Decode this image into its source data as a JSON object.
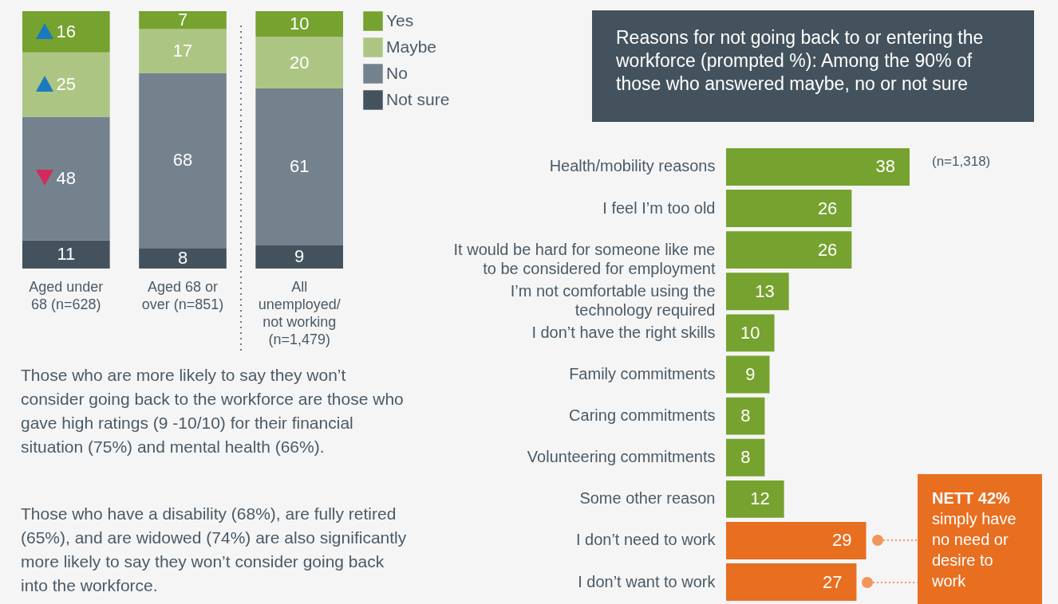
{
  "chart_data": [
    {
      "type": "bar",
      "stacked": true,
      "data_labels": true,
      "legend": "top right",
      "categories": [
        "Aged under 68 (n=628)",
        "Aged 68 or over (n=851)",
        "All unemployed/ not working (n=1,479)"
      ],
      "series": [
        {
          "name": "Not sure",
          "color": "#43525d",
          "values": [
            11,
            8,
            9
          ]
        },
        {
          "name": "No",
          "color": "#74828d",
          "values": [
            48,
            68,
            61
          ]
        },
        {
          "name": "Maybe",
          "color": "#adc583",
          "values": [
            25,
            17,
            20
          ]
        },
        {
          "name": "Yes",
          "color": "#76a22f",
          "values": [
            16,
            7,
            10
          ]
        }
      ],
      "annotations": [
        "Those who are more likely to say they won’t consider going back to the workforce are those who gave high ratings (9 -10/10) for their financial situation (75%) and mental health (66%).",
        "Those who have a disability (68%), are fully retired (65%), and are widowed (74%) are also significantly more likely to say they won’t consider going back into the workforce."
      ]
    },
    {
      "type": "bar",
      "orientation": "horizontal",
      "data_labels": true,
      "title": "Reasons for not going back to or entering the workforce (prompted %): Among the 90% of those who answered maybe, no or not sure",
      "categories": [
        "Health/mobility reasons",
        "I feel I’m too old",
        "It would be hard for someone like me to be considered for employment",
        "I’m not comfortable using the technology required",
        "I don’t have the right skills",
        "Family commitments",
        "Caring commitments",
        "Volunteering commitments",
        "Some other reason",
        "I don’t need to work",
        "I don’t want to work"
      ],
      "values": [
        38,
        26,
        26,
        13,
        10,
        9,
        8,
        8,
        12,
        29,
        27
      ],
      "colors": [
        "#76a22f",
        "#76a22f",
        "#76a22f",
        "#76a22f",
        "#76a22f",
        "#76a22f",
        "#76a22f",
        "#76a22f",
        "#76a22f",
        "#e86e20",
        "#e86e20"
      ],
      "annotations": [
        "(n=1,318)",
        "NETT 42%",
        "simply have no need or desire to work"
      ]
    }
  ]
}
